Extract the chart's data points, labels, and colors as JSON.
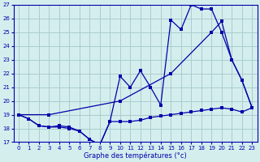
{
  "title": "Graphe des températures (°c)",
  "bg_color": "#d4eeee",
  "grid_color": "#aacccc",
  "line_color": "#0000aa",
  "xlim": [
    -0.5,
    23.5
  ],
  "ylim": [
    17,
    27
  ],
  "xticks": [
    0,
    1,
    2,
    3,
    4,
    5,
    6,
    7,
    8,
    9,
    10,
    11,
    12,
    13,
    14,
    15,
    16,
    17,
    18,
    19,
    20,
    21,
    22,
    23
  ],
  "yticks": [
    17,
    18,
    19,
    20,
    21,
    22,
    23,
    24,
    25,
    26,
    27
  ],
  "series1_x": [
    0,
    1,
    2,
    3,
    4,
    5,
    6,
    7,
    8,
    9,
    10,
    11,
    12,
    13,
    14,
    15,
    16,
    17,
    18,
    19,
    20,
    21,
    22,
    23
  ],
  "series1_y": [
    19,
    18.7,
    18.2,
    18.1,
    18.1,
    18.0,
    17.8,
    17.2,
    16.8,
    18.5,
    18.5,
    18.5,
    18.6,
    18.8,
    18.9,
    19.0,
    19.1,
    19.2,
    19.3,
    19.4,
    19.5,
    19.4,
    19.2,
    19.5
  ],
  "series2_x": [
    0,
    1,
    2,
    3,
    4,
    5,
    6,
    7,
    8,
    9,
    10,
    11,
    12,
    13,
    14,
    15,
    16,
    17,
    18,
    19,
    20,
    21,
    22,
    23
  ],
  "series2_y": [
    19,
    18.7,
    18.2,
    18.1,
    18.2,
    18.1,
    17.8,
    17.2,
    16.8,
    18.5,
    21.8,
    21.0,
    22.2,
    21.0,
    19.7,
    25.9,
    25.2,
    27.0,
    26.7,
    26.7,
    25.0,
    23.0,
    21.5,
    19.5
  ],
  "series3_x": [
    0,
    3,
    10,
    15,
    19,
    20,
    21,
    22,
    23
  ],
  "series3_y": [
    19,
    19.0,
    20.0,
    22.0,
    25.0,
    25.8,
    23.0,
    21.5,
    19.5
  ]
}
